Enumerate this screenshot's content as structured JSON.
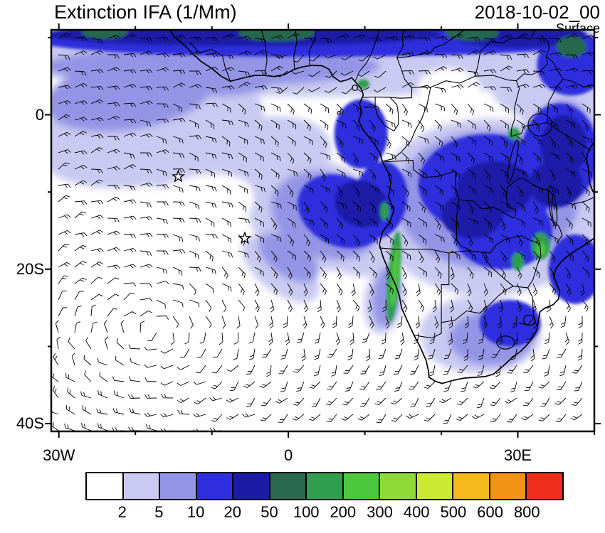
{
  "header": {
    "title": "Extinction IFA (1/Mm)",
    "datetime": "2018-10-02_00",
    "level": "Surface"
  },
  "chart_data": {
    "type": "heatmap",
    "title": "Extinction IFA (1/Mm)",
    "valid_time": "2018-10-02_00",
    "level_label": "Surface",
    "units": "1/Mm",
    "projection": "lat-lon",
    "region": "South Atlantic / Africa",
    "x_axis": {
      "range_lon": [
        -31,
        40
      ],
      "tick_interval_deg": 10,
      "ticks": [
        {
          "label": "30W",
          "lon": -30
        },
        {
          "label": "0",
          "lon": 0
        },
        {
          "label": "30E",
          "lon": 30
        }
      ]
    },
    "y_axis": {
      "range_lat": [
        -41,
        11
      ],
      "tick_interval_deg": 10,
      "ticks": [
        {
          "label": "0",
          "lat": 0
        },
        {
          "label": "20S",
          "lat": -20
        },
        {
          "label": "40S",
          "lat": -40
        }
      ]
    },
    "colorbar": {
      "levels": [
        "2",
        "5",
        "10",
        "20",
        "50",
        "100",
        "200",
        "300",
        "400",
        "500",
        "600",
        "800"
      ],
      "colors": [
        "#ffffff",
        "#c9c9f2",
        "#9494e6",
        "#2e2ede",
        "#1b1ba8",
        "#28684e",
        "#2f9e4e",
        "#4cc83e",
        "#8edb38",
        "#cdea33",
        "#f5b91e",
        "#f39214",
        "#ee2d1d"
      ]
    },
    "overlays": [
      "filled-contours",
      "wind-barbs",
      "coastlines",
      "country-borders",
      "lakes"
    ],
    "station_markers": [
      {
        "symbol": "star",
        "lon": -14.4,
        "lat": -8.0
      },
      {
        "symbol": "star",
        "lon": -5.7,
        "lat": -16.0
      }
    ]
  }
}
